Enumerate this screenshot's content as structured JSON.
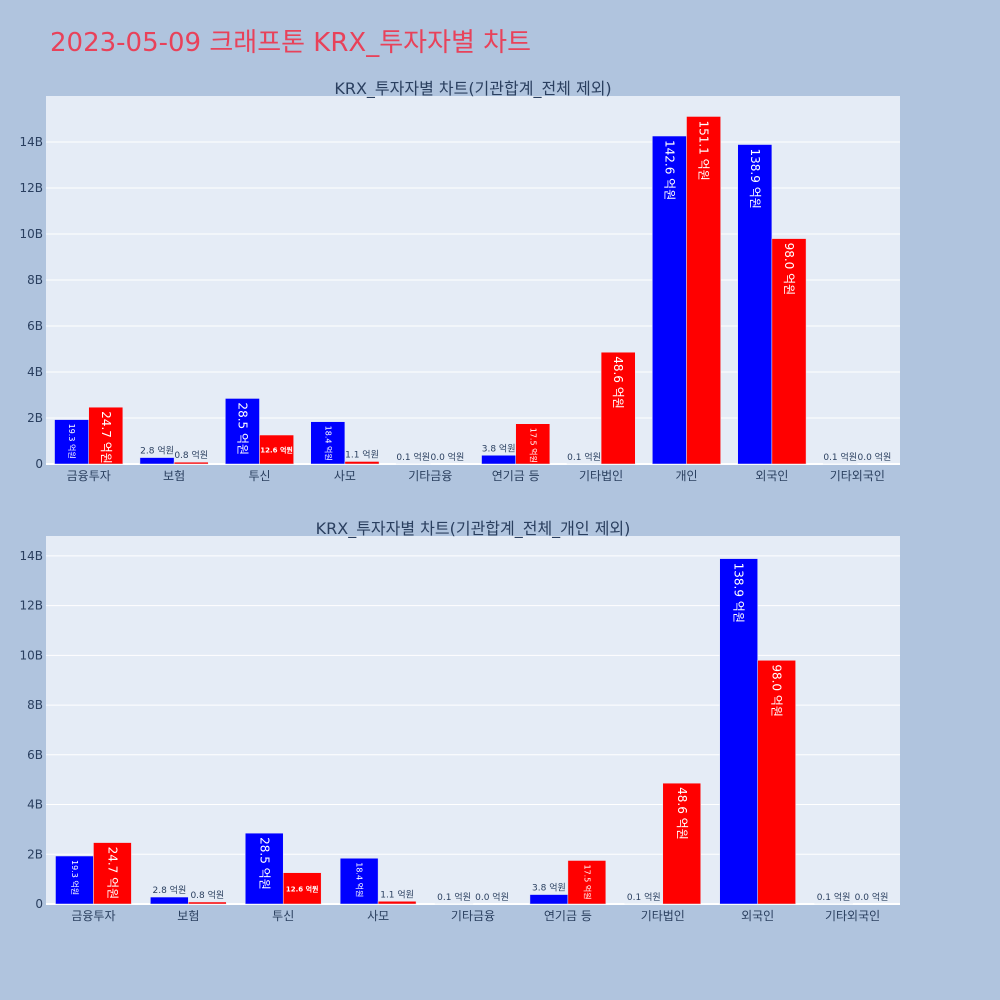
{
  "page_title": "2023-05-09 크래프톤 KRX_투자자별 차트",
  "colors": {
    "page_bg": "#b0c4de",
    "plot_bg": "#e5ecf6",
    "grid": "#ffffff",
    "buy": "#0000ff",
    "sell": "#ff0000",
    "title": "#e8425a",
    "text": "#2a3f5f"
  },
  "chart_data": [
    {
      "type": "bar",
      "title": "KRX_투자자별 차트(기관합계_전체 제외)",
      "categories": [
        "금융투자",
        "보험",
        "투신",
        "사모",
        "기타금융",
        "연기금 등",
        "기타법인",
        "개인",
        "외국인",
        "기타외국인"
      ],
      "series": [
        {
          "color": "#0000ff",
          "values": [
            1.93,
            0.28,
            2.85,
            1.84,
            0.01,
            0.38,
            0.01,
            14.26,
            13.89,
            0.01
          ],
          "labels": [
            "19.3 억원",
            "2.8 억원",
            "28.5 억원",
            "18.4 억원",
            "0.1 억원",
            "3.8 억원",
            "0.1 억원",
            "142.6 억원",
            "138.9 억원",
            "0.1 억원"
          ]
        },
        {
          "color": "#ff0000",
          "values": [
            2.47,
            0.08,
            1.26,
            0.11,
            0.0,
            1.75,
            4.86,
            15.11,
            9.8,
            0.0
          ],
          "labels": [
            "24.7 억원",
            "0.8 억원",
            "12.6 억원",
            "1.1 억원",
            "0.0 억원",
            "17.5 억원",
            "48.6 억원",
            "151.1 억원",
            "98.0 억원",
            "0.0 억원"
          ]
        }
      ],
      "yticks": [
        "0",
        "2B",
        "4B",
        "6B",
        "8B",
        "10B",
        "12B",
        "14B"
      ],
      "ylim": [
        0,
        16.0
      ],
      "grid": true
    },
    {
      "type": "bar",
      "title": "KRX_투자자별 차트(기관합계_전체_개인 제외)",
      "categories": [
        "금융투자",
        "보험",
        "투신",
        "사모",
        "기타금융",
        "연기금 등",
        "기타법인",
        "외국인",
        "기타외국인"
      ],
      "series": [
        {
          "color": "#0000ff",
          "values": [
            1.93,
            0.28,
            2.85,
            1.84,
            0.01,
            0.38,
            0.01,
            13.89,
            0.01
          ],
          "labels": [
            "19.3 억원",
            "2.8 억원",
            "28.5 억원",
            "18.4 억원",
            "0.1 억원",
            "3.8 억원",
            "0.1 억원",
            "138.9 억원",
            "0.1 억원"
          ]
        },
        {
          "color": "#ff0000",
          "values": [
            2.47,
            0.08,
            1.26,
            0.11,
            0.0,
            1.75,
            4.86,
            9.8,
            0.0
          ],
          "labels": [
            "24.7 억원",
            "0.8 억원",
            "12.6 억원",
            "1.1 억원",
            "0.0 억원",
            "17.5 억원",
            "48.6 억원",
            "98.0 억원",
            "0.0 억원"
          ]
        }
      ],
      "yticks": [
        "0",
        "2B",
        "4B",
        "6B",
        "8B",
        "10B",
        "12B",
        "14B"
      ],
      "ylim": [
        0,
        14.8
      ],
      "grid": true
    }
  ]
}
